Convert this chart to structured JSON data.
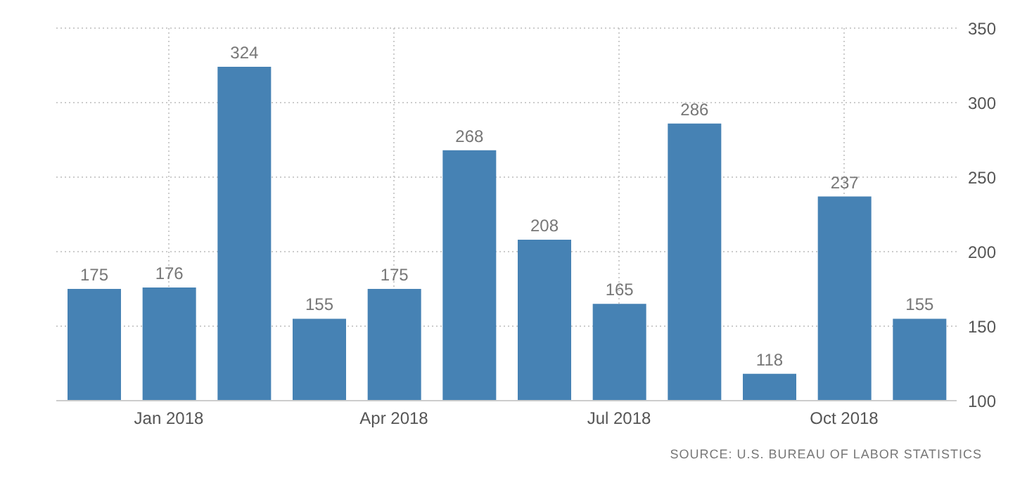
{
  "chart_data": {
    "type": "bar",
    "categories": [
      null,
      "Jan 2018",
      null,
      null,
      "Apr 2018",
      null,
      null,
      "Jul 2018",
      null,
      null,
      "Oct 2018",
      null
    ],
    "values": [
      175,
      176,
      324,
      155,
      175,
      268,
      208,
      165,
      286,
      118,
      237,
      155
    ],
    "color": "#4682b4",
    "ylim": [
      100,
      350
    ],
    "yticks": [
      100,
      150,
      200,
      250,
      300,
      350
    ],
    "grid": true,
    "data_labels": true,
    "annotations": [
      "SOURCE: U.S. BUREAU OF LABOR STATISTICS"
    ]
  }
}
